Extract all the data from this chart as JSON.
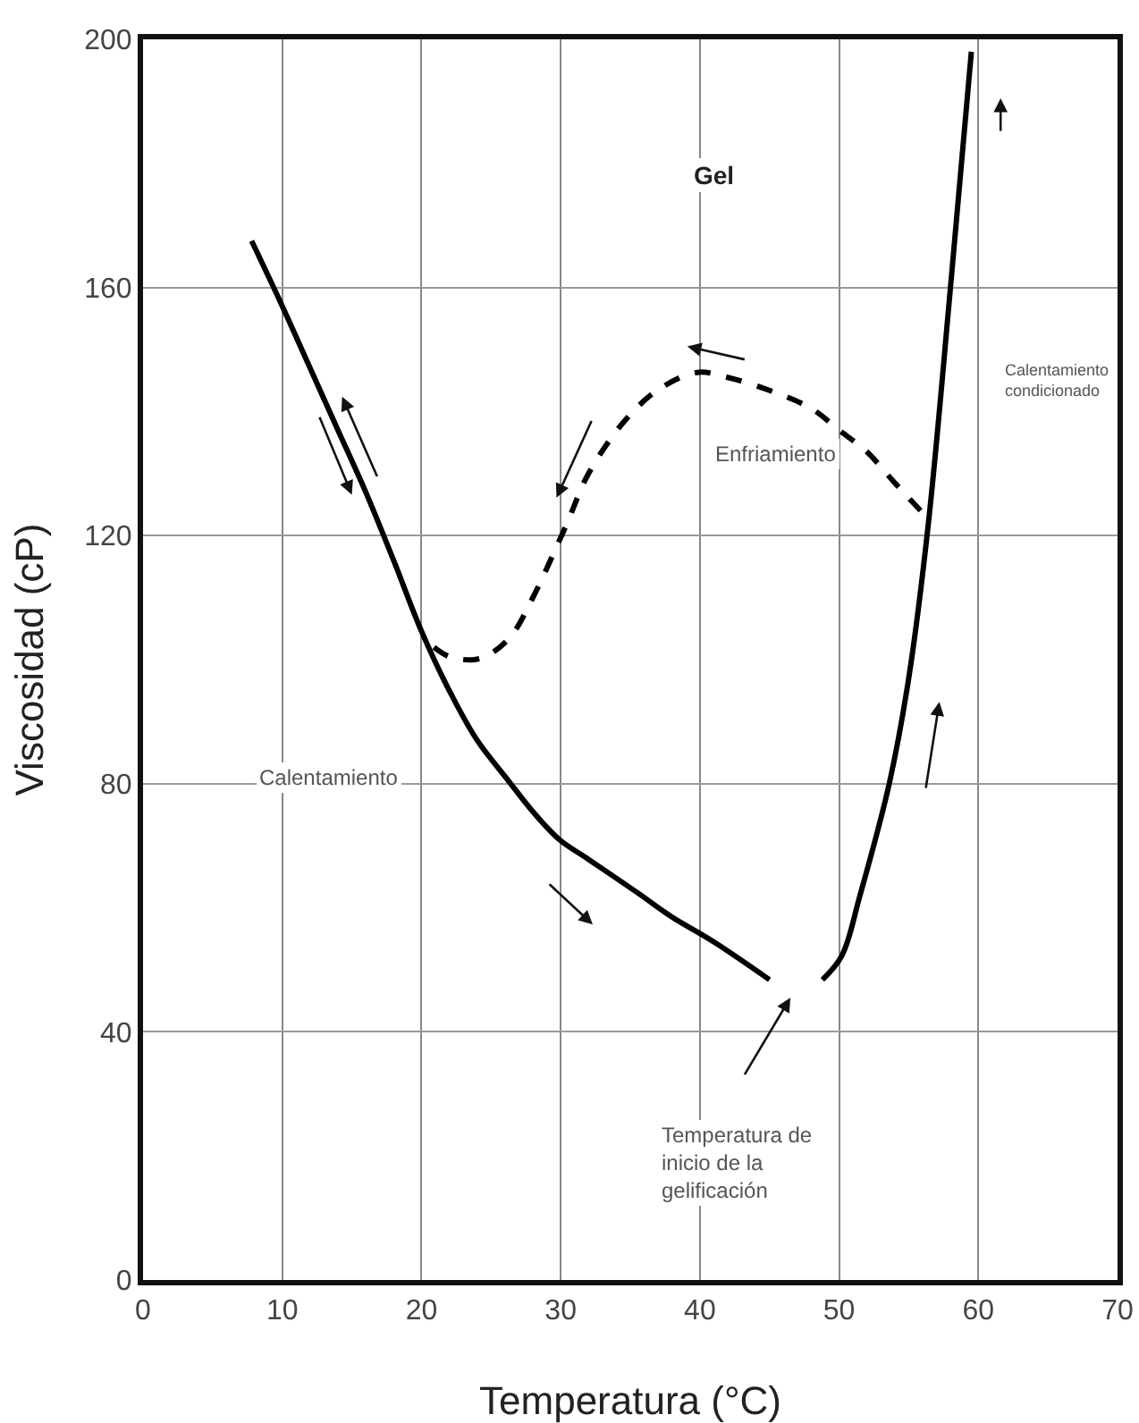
{
  "chart_data": {
    "type": "line",
    "xlabel": "Temperatura (°C)",
    "ylabel": "Viscosidad (cP)",
    "xlim": [
      0,
      70
    ],
    "ylim": [
      0,
      200
    ],
    "xticks": [
      0,
      10,
      20,
      30,
      40,
      50,
      60,
      70
    ],
    "yticks": [
      0,
      40,
      80,
      120,
      160,
      200
    ],
    "grid": true,
    "marker": "none",
    "series": [
      {
        "color": "#000000",
        "line_style": "solid",
        "x": [
          7.8,
          10,
          12,
          14,
          16,
          18,
          20,
          22,
          24,
          26.1,
          28,
          29.9,
          32,
          35.6,
          38,
          41,
          45,
          null,
          48.8,
          50.2,
          51.5,
          53.6,
          55,
          56.4,
          58,
          59.5
        ],
        "values": [
          167.5,
          157,
          147,
          137,
          127,
          116,
          104.6,
          95,
          87,
          80.9,
          75.5,
          71,
          67.8,
          62.3,
          58.5,
          54.5,
          48.4,
          null,
          48.4,
          52.3,
          62,
          80,
          97,
          121.7,
          160,
          198
        ]
      },
      {
        "color": "#000000",
        "line_style": "dashed",
        "x": [
          20.9,
          22,
          23.8,
          25,
          26.5,
          28,
          30.4,
          32,
          34.6,
          37,
          39.8,
          42,
          45,
          48,
          50,
          52,
          54,
          56.4
        ],
        "values": [
          102,
          100.5,
          100,
          101,
          104,
          110,
          121.7,
          130,
          138.5,
          143.5,
          146.3,
          145.5,
          143.4,
          140.5,
          137,
          133.5,
          128.5,
          122.7
        ]
      }
    ],
    "annotations": [
      "Gel",
      "Enfriamiento",
      "Calentamiento\ncondicionado",
      "Calentamiento",
      "Temperatura de\ninicio de la\ngelificación"
    ]
  }
}
